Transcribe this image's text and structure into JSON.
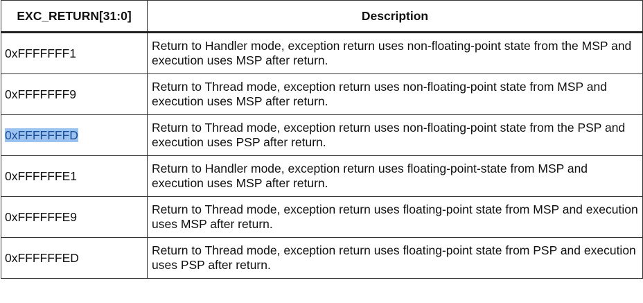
{
  "table": {
    "headers": [
      "EXC_RETURN[31:0]",
      "Description"
    ],
    "rows": [
      {
        "code": "0xFFFFFFF1",
        "description": "Return to Handler mode, exception return uses non-floating-point state from the MSP and execution uses MSP after return."
      },
      {
        "code": "0xFFFFFFF9",
        "description": "Return to Thread mode, exception return uses non-floating-point state from MSP and execution uses MSP after return."
      },
      {
        "code": "0xFFFFFFFD",
        "description": "Return to Thread mode, exception return uses non-floating-point state from the PSP and execution uses PSP after return.",
        "highlighted": true
      },
      {
        "code": "0xFFFFFFE1",
        "description": "Return to Handler mode, exception return uses floating-point-state from MSP and execution uses MSP after return."
      },
      {
        "code": "0xFFFFFFE9",
        "description": "Return to Thread mode, exception return uses floating-point state from MSP and execution uses MSP after return."
      },
      {
        "code": "0xFFFFFFED",
        "description": "Return to Thread mode, exception return uses floating-point state from PSP and execution uses PSP after return."
      }
    ]
  },
  "colors": {
    "border": "#333333",
    "highlight_bg": "#9cc3ef",
    "highlight_text": "#1d4f99"
  }
}
